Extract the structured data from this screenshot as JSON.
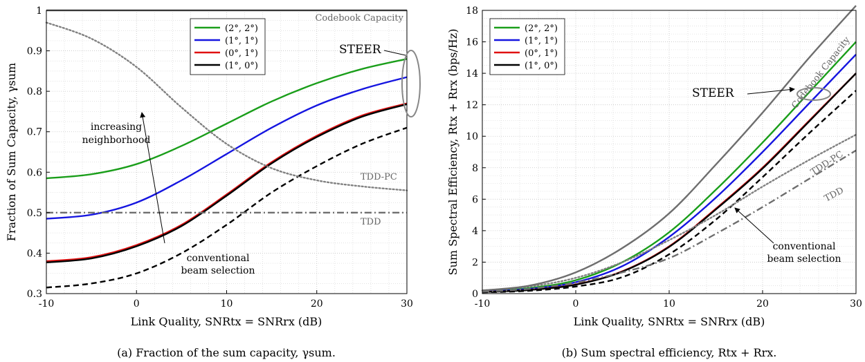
{
  "chart_data": [
    {
      "type": "line",
      "caption": "(a) Fraction of the sum capacity, γsum.",
      "xlabel": "Link Quality, SNRtx = SNRrx (dB)",
      "ylabel": "Fraction of Sum Capacity, γsum",
      "xlim": [
        -10,
        30
      ],
      "ylim": [
        0.3,
        1.0
      ],
      "xticks": [
        -10,
        0,
        10,
        20,
        30
      ],
      "xtick_labels": [
        "-10",
        "0",
        "10",
        "20",
        "30"
      ],
      "yticks": [
        0.3,
        0.4,
        0.5,
        0.6,
        0.7,
        0.8,
        0.9,
        1.0
      ],
      "ytick_labels": [
        "0.3",
        "0.4",
        "0.5",
        "0.6",
        "0.7",
        "0.8",
        "0.9",
        "1"
      ],
      "grid": true,
      "legend_position": "top-center",
      "x": [
        -10,
        -5,
        0,
        5,
        10,
        15,
        20,
        25,
        30
      ],
      "series": [
        {
          "name": "(2°, 2°)",
          "color": "#1a9e1a",
          "style": "solid",
          "legend": true,
          "values": [
            0.585,
            0.595,
            0.62,
            0.665,
            0.72,
            0.775,
            0.82,
            0.855,
            0.88
          ]
        },
        {
          "name": "(1°, 1°)",
          "color": "#1515e0",
          "style": "solid",
          "legend": true,
          "values": [
            0.485,
            0.495,
            0.525,
            0.58,
            0.645,
            0.71,
            0.765,
            0.805,
            0.835
          ]
        },
        {
          "name": "(0°, 1°)",
          "color": "#e01010",
          "style": "solid",
          "legend": true,
          "values": [
            0.38,
            0.39,
            0.42,
            0.47,
            0.545,
            0.625,
            0.69,
            0.74,
            0.77
          ]
        },
        {
          "name": "(1°, 0°)",
          "color": "#000000",
          "style": "solid",
          "legend": true,
          "values": [
            0.377,
            0.387,
            0.417,
            0.467,
            0.542,
            0.622,
            0.687,
            0.737,
            0.768
          ]
        },
        {
          "name": "conventional beam selection",
          "color": "#000000",
          "style": "dashed",
          "legend": false,
          "values": [
            0.315,
            0.325,
            0.35,
            0.4,
            0.47,
            0.55,
            0.615,
            0.67,
            0.71
          ]
        },
        {
          "name": "TDD-PC",
          "color": "#808080",
          "style": "dotted",
          "legend": false,
          "values": [
            0.97,
            0.93,
            0.86,
            0.76,
            0.67,
            0.61,
            0.58,
            0.565,
            0.555
          ]
        },
        {
          "name": "TDD",
          "color": "#6e6e6e",
          "style": "dashdot",
          "legend": false,
          "values": [
            0.5,
            0.5,
            0.5,
            0.5,
            0.5,
            0.5,
            0.5,
            0.5,
            0.5
          ]
        },
        {
          "name": "Codebook Capacity",
          "color": "#6e6e6e",
          "style": "solid",
          "legend": false,
          "values": [
            1,
            1,
            1,
            1,
            1,
            1,
            1,
            1,
            1
          ]
        }
      ],
      "annotations": {
        "steer": "STEER",
        "increasing_1": "increasing",
        "increasing_2": "neighborhood",
        "conventional_1": "conventional",
        "conventional_2": "beam selection",
        "tdd_pc": "TDD-PC",
        "tdd": "TDD",
        "codebook": "Codebook Capacity"
      }
    },
    {
      "type": "line",
      "caption": "(b) Sum spectral efficiency, Rtx + Rrx.",
      "xlabel": "Link Quality, SNRtx = SNRrx (dB)",
      "ylabel": "Sum Spectral Efficiency, Rtx + Rrx (bps/Hz)",
      "xlim": [
        -10,
        30
      ],
      "ylim": [
        0,
        18
      ],
      "xticks": [
        -10,
        0,
        10,
        20,
        30
      ],
      "xtick_labels": [
        "-10",
        "0",
        "10",
        "20",
        "30"
      ],
      "yticks": [
        0,
        2,
        4,
        6,
        8,
        10,
        12,
        14,
        16,
        18
      ],
      "ytick_labels": [
        "0",
        "2",
        "4",
        "6",
        "8",
        "10",
        "12",
        "14",
        "16",
        "18"
      ],
      "grid": true,
      "legend_position": "top-left",
      "x": [
        -10,
        -5,
        0,
        5,
        10,
        15,
        20,
        25,
        30
      ],
      "series": [
        {
          "name": "(2°, 2°)",
          "color": "#1a9e1a",
          "style": "solid",
          "legend": true,
          "values": [
            0.15,
            0.35,
            0.85,
            2.0,
            3.9,
            6.6,
            9.6,
            12.8,
            16.0
          ]
        },
        {
          "name": "(1°, 1°)",
          "color": "#1515e0",
          "style": "solid",
          "legend": true,
          "values": [
            0.12,
            0.3,
            0.72,
            1.75,
            3.6,
            6.1,
            9.0,
            12.1,
            15.2
          ]
        },
        {
          "name": "(0°, 1°)",
          "color": "#e01010",
          "style": "solid",
          "legend": true,
          "values": [
            0.1,
            0.24,
            0.58,
            1.42,
            3.0,
            5.4,
            8.0,
            11.0,
            14.0
          ]
        },
        {
          "name": "(1°, 0°)",
          "color": "#000000",
          "style": "solid",
          "legend": true,
          "values": [
            0.1,
            0.23,
            0.57,
            1.4,
            2.97,
            5.35,
            7.95,
            10.95,
            14.0
          ]
        },
        {
          "name": "conventional beam selection",
          "color": "#000000",
          "style": "dashed",
          "legend": false,
          "values": [
            0.08,
            0.18,
            0.45,
            1.05,
            2.5,
            4.7,
            7.4,
            10.2,
            12.9
          ]
        },
        {
          "name": "TDD-PC",
          "color": "#808080",
          "style": "dotted",
          "legend": false,
          "values": [
            0.2,
            0.45,
            1.0,
            2.0,
            3.4,
            5.0,
            6.8,
            8.5,
            10.1
          ]
        },
        {
          "name": "TDD",
          "color": "#6e6e6e",
          "style": "dashdot",
          "legend": false,
          "values": [
            0.12,
            0.3,
            0.7,
            1.35,
            2.25,
            3.8,
            5.5,
            7.3,
            9.1
          ]
        },
        {
          "name": "Codebook Capacity",
          "color": "#6e6e6e",
          "style": "solid",
          "legend": false,
          "values": [
            0.2,
            0.5,
            1.35,
            2.9,
            5.1,
            8.2,
            11.5,
            15.0,
            18.3
          ]
        }
      ],
      "annotations": {
        "steer": "STEER",
        "conventional_1": "conventional",
        "conventional_2": "beam selection",
        "tdd_pc": "TDD-PC",
        "tdd": "TDD",
        "codebook": "Codebook Capacity"
      }
    }
  ]
}
